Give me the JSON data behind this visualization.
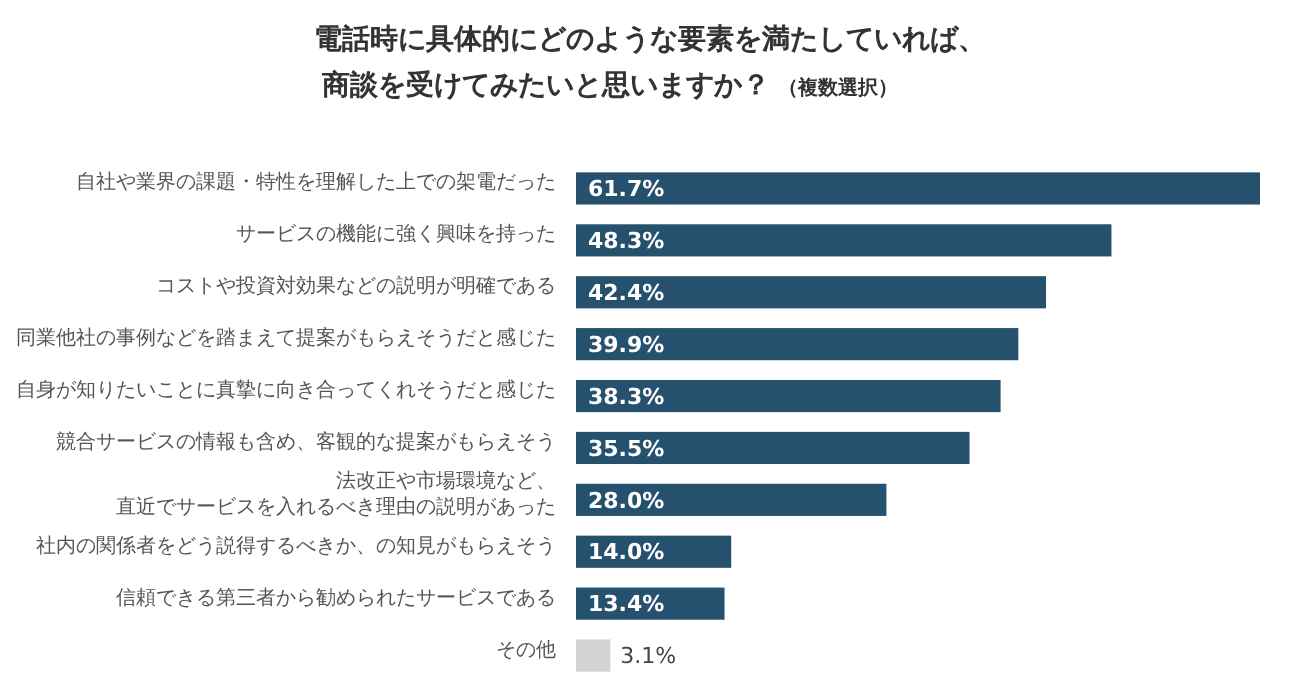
{
  "chart_data": {
    "type": "bar",
    "orientation": "horizontal",
    "title": "電話時に具体的にどのような要素を満たしていれば、商談を受けてみたいと思いますか？",
    "subtitle": "（複数選択）",
    "categories": [
      "自社や業界の課題・特性を理解した上での架電だった",
      "サービスの機能に強く興味を持った",
      "コストや投資対効果などの説明が明確である",
      "同業他社の事例などを踏まえて提案がもらえそうだと感じた",
      "自身が知りたいことに真摯に向き合ってくれそうだと感じた",
      "競合サービスの情報も含め、客観的な提案がもらえそう",
      "法改正や市場環境など、直近でサービスを入れるべき理由の説明があった",
      "社内の関係者をどう説得するべきか、の知見がもらえそう",
      "信頼できる第三者から勧められたサービスである",
      "その他"
    ],
    "values": [
      61.7,
      48.3,
      42.4,
      39.9,
      38.3,
      35.5,
      28.0,
      14.0,
      13.4,
      3.1
    ],
    "value_labels": [
      "61.7%",
      "48.3%",
      "42.4%",
      "39.9%",
      "38.3%",
      "35.5%",
      "28.0%",
      "14.0%",
      "13.4%",
      "3.1%"
    ],
    "colors": [
      "#25506e",
      "#25506e",
      "#25506e",
      "#25506e",
      "#25506e",
      "#25506e",
      "#25506e",
      "#25506e",
      "#25506e",
      "#d3d3d3"
    ]
  }
}
